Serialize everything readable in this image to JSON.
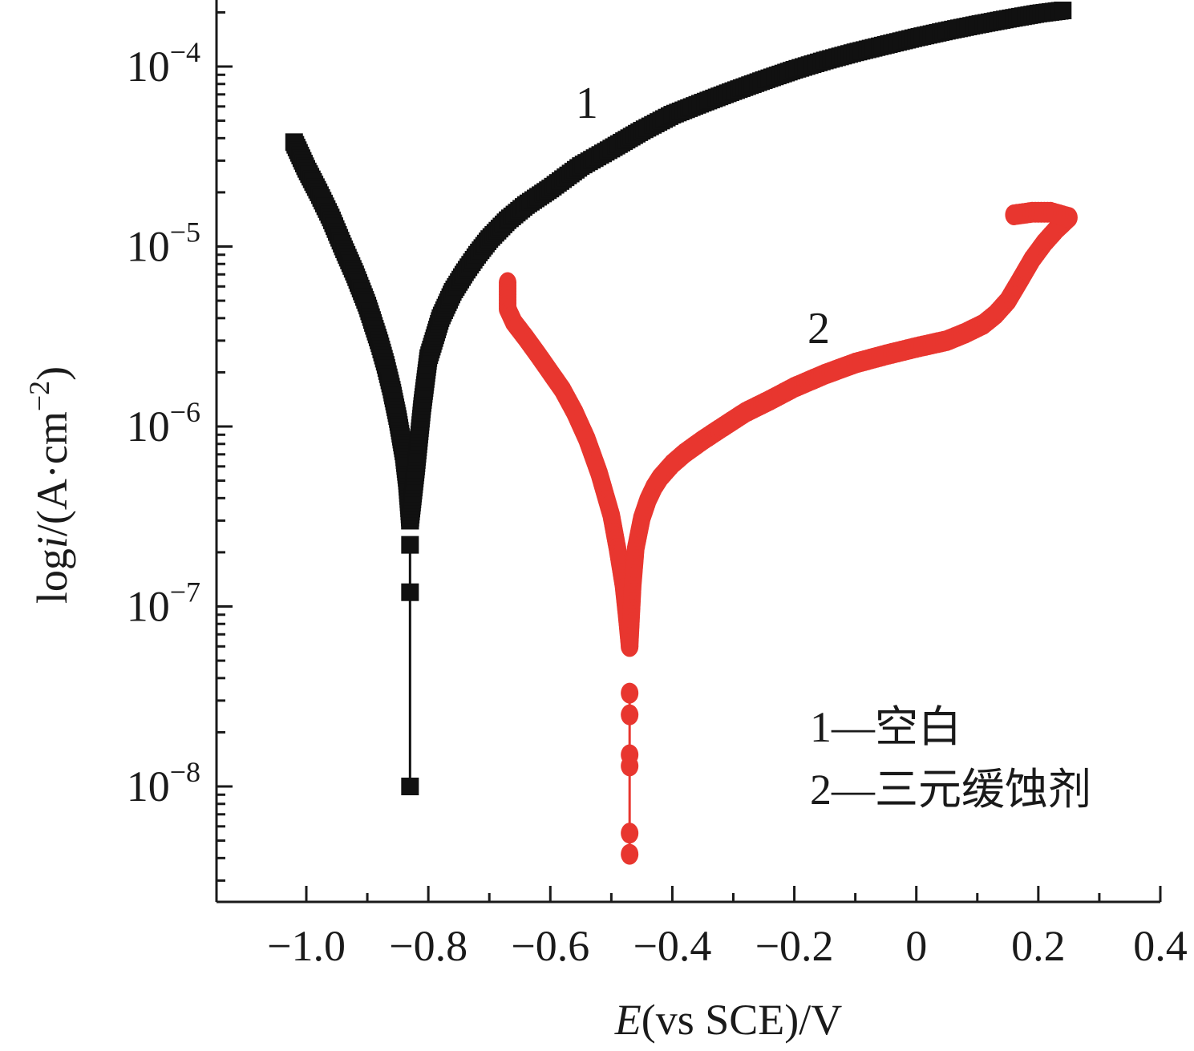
{
  "chart_data": {
    "type": "scatter",
    "xlabel_italic": "E",
    "xlabel_rest": "(vs SCE)/V",
    "ylabel_prefix": "log",
    "ylabel_italic": "i",
    "ylabel_rest": "/(A·cm",
    "ylabel_sup": "−2",
    "ylabel_close": ")",
    "xlim": [
      -1.15,
      0.4
    ],
    "ylim_log10": [
      -8.65,
      -3.6
    ],
    "yscale": "log",
    "grid": false,
    "x_ticks": [
      {
        "value": -1.0,
        "label": "−1.0"
      },
      {
        "value": -0.8,
        "label": "−0.8"
      },
      {
        "value": -0.6,
        "label": "−0.6"
      },
      {
        "value": -0.4,
        "label": "−0.4"
      },
      {
        "value": -0.2,
        "label": "−0.2"
      },
      {
        "value": 0.0,
        "label": "0"
      },
      {
        "value": 0.2,
        "label": "0.2"
      },
      {
        "value": 0.4,
        "label": "0.4"
      }
    ],
    "y_ticks": [
      {
        "exp": -4,
        "base": "10",
        "sup": "−4"
      },
      {
        "exp": -5,
        "base": "10",
        "sup": "−5"
      },
      {
        "exp": -6,
        "base": "10",
        "sup": "−6"
      },
      {
        "exp": -7,
        "base": "10",
        "sup": "−7"
      },
      {
        "exp": -8,
        "base": "10",
        "sup": "−8"
      }
    ],
    "series": [
      {
        "name": "1",
        "marker": "square",
        "color": "#111111",
        "label_at": {
          "x": -0.54,
          "y": 5.2e-05
        },
        "branches": [
          {
            "x": [
              -1.02,
              -1.0,
              -0.98,
              -0.96,
              -0.94,
              -0.92,
              -0.9,
              -0.88,
              -0.87,
              -0.86,
              -0.85,
              -0.84,
              -0.835,
              -0.83
            ],
            "y": [
              3.8e-05,
              2.7e-05,
              2e-05,
              1.45e-05,
              1e-05,
              7e-06,
              4.7e-06,
              2.9e-06,
              2.2e-06,
              1.6e-06,
              1.1e-06,
              7e-07,
              5e-07,
              3e-07
            ]
          },
          {
            "x": [
              -0.83,
              -0.82,
              -0.81,
              -0.8,
              -0.78,
              -0.76,
              -0.74,
              -0.72,
              -0.7,
              -0.67,
              -0.64,
              -0.6,
              -0.55,
              -0.5,
              -0.45,
              -0.4,
              -0.35,
              -0.3,
              -0.25,
              -0.2,
              -0.15,
              -0.1,
              -0.05,
              0.0,
              0.05,
              0.1,
              0.15,
              0.2,
              0.24
            ],
            "y": [
              3e-07,
              6e-07,
              1.3e-06,
              2.4e-06,
              4e-06,
              5.6e-06,
              7.2e-06,
              9e-06,
              1.1e-05,
              1.4e-05,
              1.7e-05,
              2.1e-05,
              2.8e-05,
              3.5e-05,
              4.4e-05,
              5.4e-05,
              6.3e-05,
              7.3e-05,
              8.4e-05,
              9.6e-05,
              0.000108,
              0.00012,
              0.000132,
              0.000145,
              0.000158,
              0.000171,
              0.000184,
              0.000197,
              0.000205
            ]
          }
        ],
        "tail_x": [
          -0.83,
          -0.83,
          -0.83
        ],
        "tail_y": [
          2.2e-07,
          1.2e-07,
          1e-08
        ]
      },
      {
        "name": "2",
        "marker": "circle",
        "color": "#e8362f",
        "label_at": {
          "x": -0.16,
          "y": 2.9e-06
        },
        "branches": [
          {
            "x": [
              -0.67,
              -0.67,
              -0.66,
              -0.64,
              -0.62,
              -0.6,
              -0.58,
              -0.56,
              -0.54,
              -0.52,
              -0.5,
              -0.49,
              -0.48,
              -0.475,
              -0.47
            ],
            "y": [
              6.3e-06,
              4.5e-06,
              3.8e-06,
              3.1e-06,
              2.5e-06,
              2e-06,
              1.6e-06,
              1.2e-06,
              8.5e-07,
              5.5e-07,
              3.2e-07,
              2.1e-07,
              1.3e-07,
              9e-08,
              6e-08
            ]
          },
          {
            "x": [
              -0.47,
              -0.465,
              -0.46,
              -0.45,
              -0.44,
              -0.43,
              -0.42,
              -0.4,
              -0.38,
              -0.35,
              -0.32,
              -0.28,
              -0.24,
              -0.2,
              -0.15,
              -0.1,
              -0.05,
              0.0,
              0.05,
              0.08,
              0.11,
              0.13,
              0.15,
              0.17,
              0.19,
              0.21,
              0.23,
              0.25,
              0.22,
              0.19,
              0.16
            ],
            "y": [
              6e-08,
              1.3e-07,
              2.1e-07,
              3.1e-07,
              3.9e-07,
              4.6e-07,
              5.2e-07,
              6.2e-07,
              7.1e-07,
              8.4e-07,
              9.8e-07,
              1.2e-06,
              1.4e-06,
              1.65e-06,
              1.95e-06,
              2.25e-06,
              2.5e-06,
              2.75e-06,
              3e-06,
              3.3e-06,
              3.7e-06,
              4.2e-06,
              5e-06,
              6.5e-06,
              8.5e-06,
              1.05e-05,
              1.25e-05,
              1.45e-05,
              1.55e-05,
              1.55e-05,
              1.5e-05
            ]
          }
        ],
        "tail_x": [
          -0.47,
          -0.47,
          -0.47,
          -0.47,
          -0.47,
          -0.47
        ],
        "tail_y": [
          3.3e-08,
          2.5e-08,
          1.5e-08,
          1.3e-08,
          5.5e-09,
          4.2e-09
        ]
      }
    ],
    "legend": {
      "placement": "bottom-right",
      "entries": [
        "1—空白",
        "2—三元缓蚀剂"
      ]
    }
  }
}
